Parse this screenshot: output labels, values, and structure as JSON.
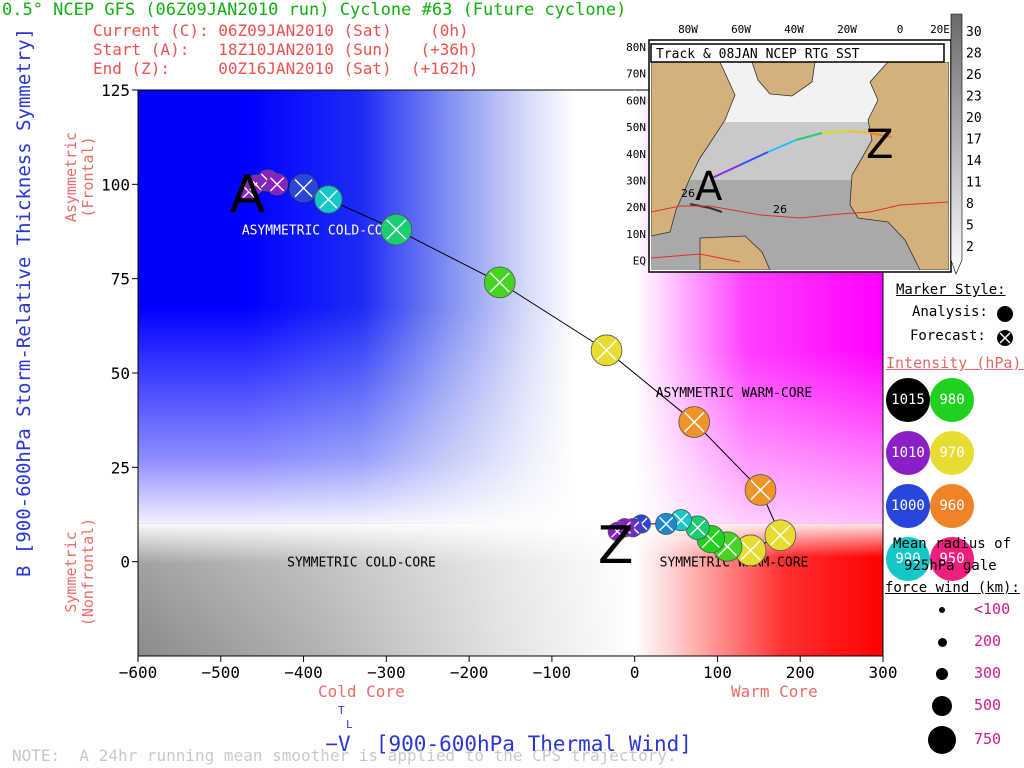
{
  "header": {
    "title": "0.5° NCEP GFS (06Z09JAN2010 run) Cyclone #63 (Future cyclone)",
    "current": "Current (C): 06Z09JAN2010 (Sat)    (0h)",
    "start": "Start (A):   18Z10JAN2010 (Sun)   (+36h)",
    "end": "End (Z):     00Z16JAN2010 (Sat)  (+162h)"
  },
  "axes": {
    "ylabel": "B [900-600hPa Storm-Relative Thickness Symmetry]",
    "y_top_side": "Asymmetric\n(Frontal)",
    "y_bottom_side": "Symmetric\n(Nonfrontal)",
    "xlabel": "−V  [900-600hPa Thermal Wind]",
    "xlabel_sup": "T",
    "xlabel_sub": "L",
    "x_cold": "Cold Core",
    "x_warm": "Warm Core"
  },
  "note": "NOTE:  A 24hr running mean smoother is applied to the CPS trajectory.",
  "chart_data": {
    "type": "scatter",
    "xlim": [
      -600,
      300
    ],
    "ylim": [
      -25,
      125
    ],
    "x_ticks": [
      -600,
      -500,
      -400,
      -300,
      -200,
      -100,
      0,
      100,
      200,
      300
    ],
    "x_tick_labels": [
      "−600",
      "−500",
      "−400",
      "−300",
      "−200",
      "−100",
      "0",
      "100",
      "200",
      "300"
    ],
    "y_ticks": [
      0,
      25,
      50,
      75,
      100,
      125
    ],
    "quadrant_labels": [
      {
        "text": "ASYMMETRIC COLD-CORE",
        "x": -380,
        "y": 88
      },
      {
        "text": "ASYMMETRIC WARM-CORE",
        "x": 120,
        "y": 45
      },
      {
        "text": "SYMMETRIC COLD-CORE",
        "x": -330,
        "y": 0
      },
      {
        "text": "SYMMETRIC WARM-CORE",
        "x": 120,
        "y": 0
      }
    ],
    "endpoint_labels": [
      {
        "text": "A",
        "x": -468,
        "y": 98
      },
      {
        "text": "Z",
        "x": -23,
        "y": 5
      }
    ],
    "track": [
      {
        "x": -466,
        "y": 98,
        "pressure": 1010,
        "radius": 100
      },
      {
        "x": -458,
        "y": 100,
        "pressure": 1010,
        "radius": 100
      },
      {
        "x": -443,
        "y": 101,
        "pressure": 1010,
        "radius": 150
      },
      {
        "x": -432,
        "y": 100,
        "pressure": 1010,
        "radius": 150
      },
      {
        "x": -400,
        "y": 99,
        "pressure": 1000,
        "radius": 300
      },
      {
        "x": -370,
        "y": 96,
        "pressure": 990,
        "radius": 300
      },
      {
        "x": -288,
        "y": 88,
        "pressure": 985,
        "radius": 400
      },
      {
        "x": -163,
        "y": 74,
        "pressure": 978,
        "radius": 400
      },
      {
        "x": -34,
        "y": 56,
        "pressure": 970,
        "radius": 400
      },
      {
        "x": 72,
        "y": 37,
        "pressure": 962,
        "radius": 400
      },
      {
        "x": 152,
        "y": 19,
        "pressure": 962,
        "radius": 400
      },
      {
        "x": 176,
        "y": 7,
        "pressure": 970,
        "radius": 400
      },
      {
        "x": 140,
        "y": 3,
        "pressure": 970,
        "radius": 400
      },
      {
        "x": 112,
        "y": 4,
        "pressure": 978,
        "radius": 350
      },
      {
        "x": 92,
        "y": 6,
        "pressure": 980,
        "radius": 300
      },
      {
        "x": 76,
        "y": 9,
        "pressure": 985,
        "radius": 200
      },
      {
        "x": 56,
        "y": 11,
        "pressure": 990,
        "radius": 150
      },
      {
        "x": 38,
        "y": 10,
        "pressure": 995,
        "radius": 150
      },
      {
        "x": 8,
        "y": 10,
        "pressure": 1000,
        "radius": 100
      },
      {
        "x": -2,
        "y": 9,
        "pressure": 1005,
        "radius": 100
      },
      {
        "x": -12,
        "y": 9,
        "pressure": 1010,
        "radius": 100
      },
      {
        "x": -21,
        "y": 8,
        "pressure": 1010,
        "radius": 100
      }
    ]
  },
  "inset": {
    "title": "Track & 08JAN NCEP RTG SST",
    "lon_labels": [
      "80W",
      "60W",
      "40W",
      "20W",
      "0",
      "20E"
    ],
    "lat_labels": [
      "80N",
      "70N",
      "60N",
      "50N",
      "40N",
      "30N",
      "20N",
      "10N",
      "EQ"
    ],
    "contour_labels": [
      "26",
      "26"
    ],
    "colorbar_ticks": [
      "30",
      "28",
      "26",
      "23",
      "20",
      "17",
      "14",
      "11",
      "8",
      "5",
      "2"
    ],
    "marker_a": "A",
    "marker_z": "Z"
  },
  "legend": {
    "marker_style_title": "Marker Style:",
    "analysis_label": "Analysis:",
    "forecast_label": "Forecast:",
    "intensity_title": "Intensity (hPa):",
    "intensity": [
      {
        "label": "1015",
        "color": "#000000"
      },
      {
        "label": "980",
        "color": "#1ed21e"
      },
      {
        "label": "1010",
        "color": "#8c1ec8"
      },
      {
        "label": "970",
        "color": "#e6dc32"
      },
      {
        "label": "1000",
        "color": "#2846dc"
      },
      {
        "label": "960",
        "color": "#f08228"
      },
      {
        "label": "990",
        "color": "#14c8c8"
      },
      {
        "label": "950",
        "color": "#f01e7d"
      }
    ],
    "radius_title_1": "Mean radius of",
    "radius_title_2": "925hPa gale",
    "radius_title_3": "force wind (km):",
    "radius_labels": [
      "<100",
      "200",
      "300",
      "500",
      "750"
    ]
  }
}
